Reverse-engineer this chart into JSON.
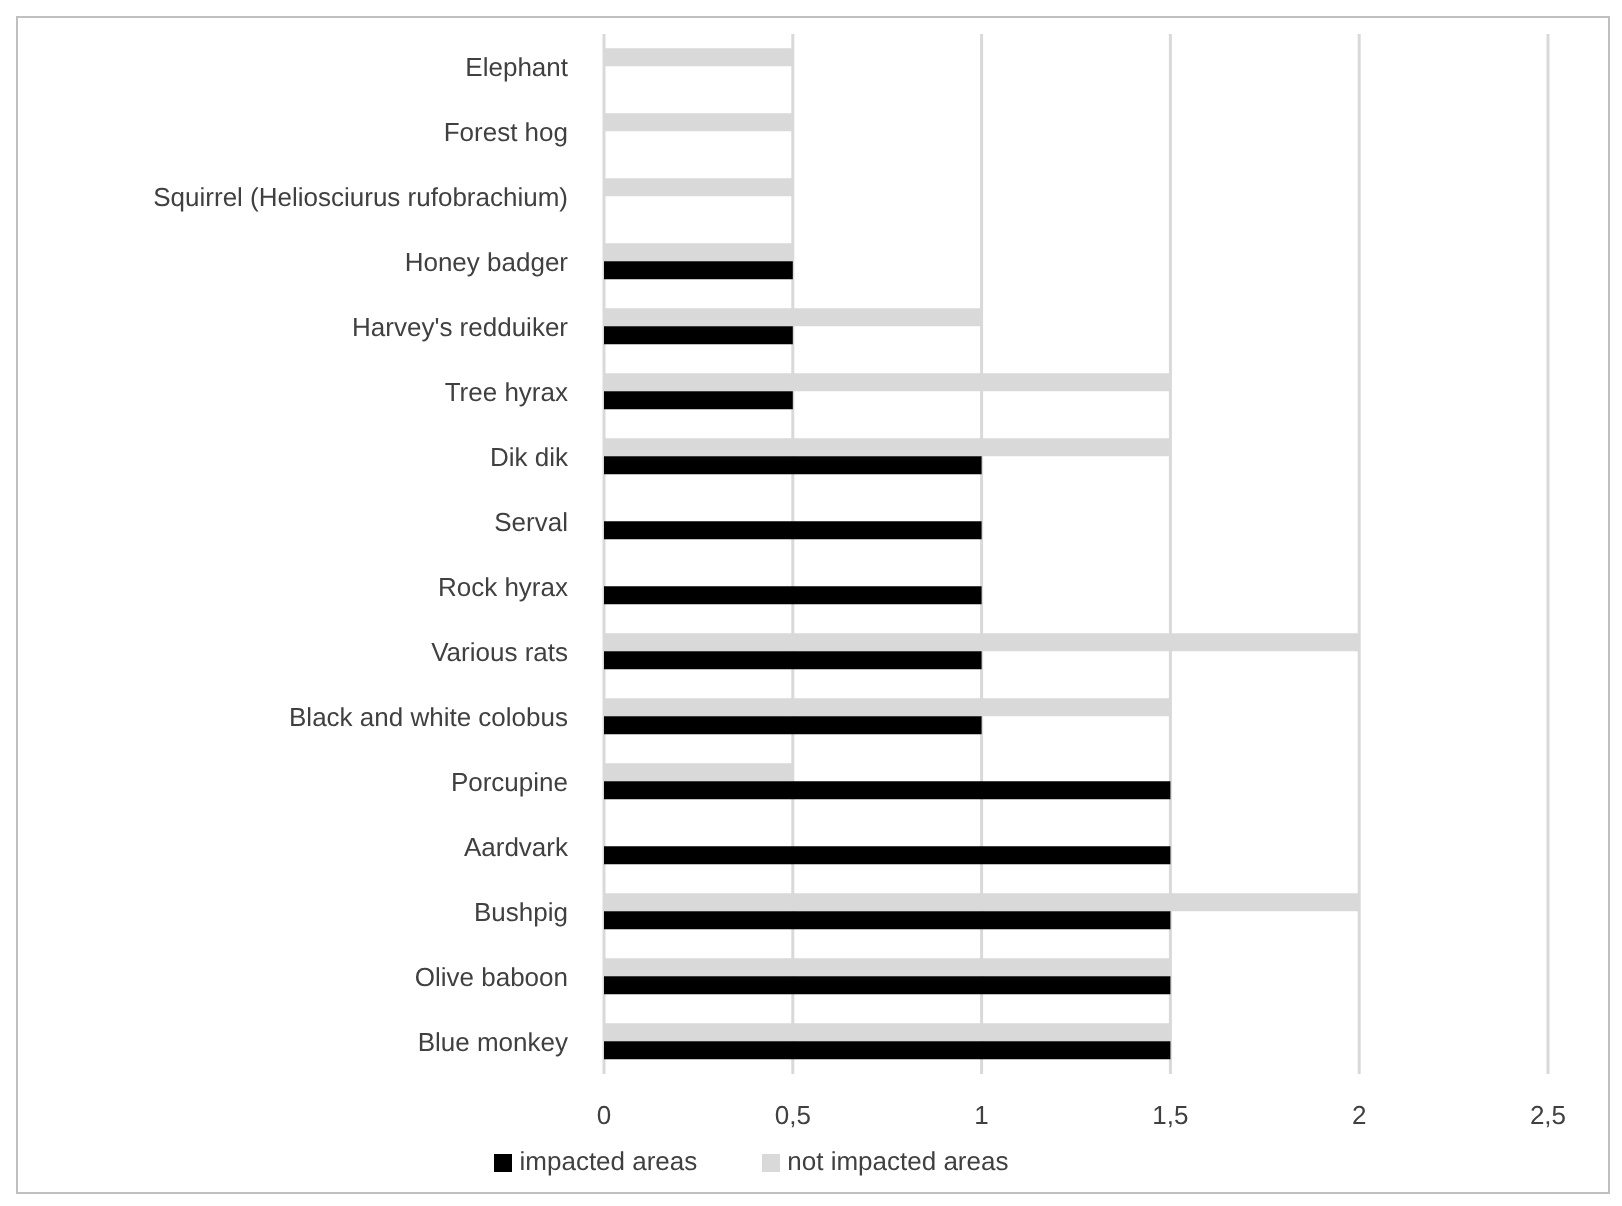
{
  "chart_data": {
    "type": "bar",
    "orientation": "horizontal",
    "categories": [
      "Elephant",
      "Forest hog",
      "Squirrel (Heliosciurus rufobrachium)",
      "Honey badger",
      "Harvey's redduiker",
      "Tree hyrax",
      "Dik dik",
      "Serval",
      "Rock hyrax",
      "Various rats",
      "Black and white colobus",
      "Porcupine",
      "Aardvark",
      "Bushpig",
      "Olive baboon",
      "Blue monkey"
    ],
    "series": [
      {
        "name": "not impacted areas",
        "color": "#d9d9d9",
        "values": [
          0.5,
          0.5,
          0.5,
          0.5,
          1,
          1.5,
          1.5,
          0,
          0,
          2,
          1.5,
          0.5,
          0,
          2,
          1.5,
          1.5
        ]
      },
      {
        "name": "impacted areas",
        "color": "#000000",
        "values": [
          0,
          0,
          0,
          0.5,
          0.5,
          0.5,
          1,
          1,
          1,
          1,
          1,
          1.5,
          1.5,
          1.5,
          1.5,
          1.5
        ]
      }
    ],
    "xlim": [
      0,
      2.5
    ],
    "xticks": [
      0,
      {
        "value": 0.5,
        "label": "0,5"
      },
      1,
      {
        "value": 1.5,
        "label": "1,5"
      },
      2,
      {
        "value": 2.5,
        "label": "2,5"
      }
    ],
    "grid": "x",
    "legend": "bottom"
  }
}
